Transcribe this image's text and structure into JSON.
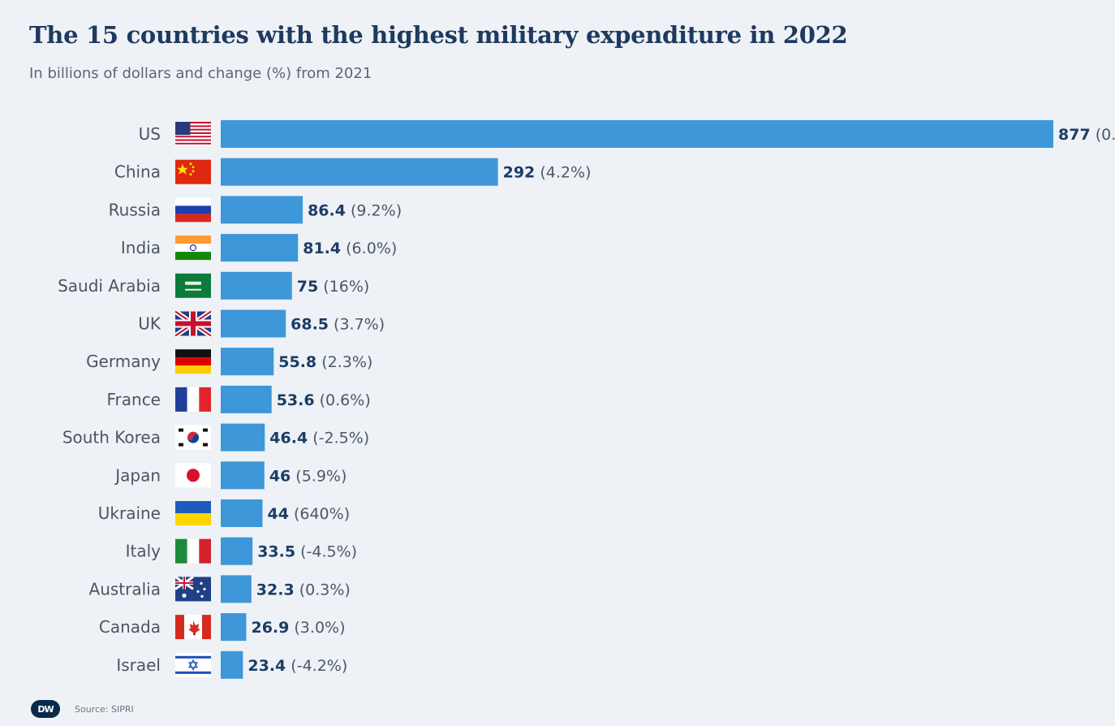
{
  "chart_data": {
    "type": "bar",
    "orientation": "horizontal",
    "title": "The 15 countries with the highest military expenditure in 2022",
    "subtitle": "In billions of dollars and change (%) from 2021",
    "categories": [
      "US",
      "China",
      "Russia",
      "India",
      "Saudi Arabia",
      "UK",
      "Germany",
      "France",
      "South Korea",
      "Japan",
      "Ukraine",
      "Italy",
      "Australia",
      "Canada",
      "Israel"
    ],
    "values": [
      877,
      292,
      86.4,
      81.4,
      75,
      68.5,
      55.8,
      53.6,
      46.4,
      46,
      44,
      33.5,
      32.3,
      26.9,
      23.4
    ],
    "value_labels": [
      "877",
      "292",
      "86.4",
      "81.4",
      "75",
      "68.5",
      "55.8",
      "53.6",
      "46.4",
      "46",
      "44",
      "33.5",
      "32.3",
      "26.9",
      "23.4"
    ],
    "change_labels": [
      "(0.",
      "(4.2%)",
      "(9.2%)",
      "(6.0%)",
      "(16%)",
      "(3.7%)",
      "(2.3%)",
      "(0.6%)",
      "(-2.5%)",
      "(5.9%)",
      "(640%)",
      "(-4.5%)",
      "(0.3%)",
      "(3.0%)",
      "(-4.2%)"
    ],
    "flags": [
      "us-flag",
      "china-flag",
      "russia-flag",
      "india-flag",
      "saudi-arabia-flag",
      "uk-flag",
      "germany-flag",
      "france-flag",
      "south-korea-flag",
      "japan-flag",
      "ukraine-flag",
      "italy-flag",
      "australia-flag",
      "canada-flag",
      "israel-flag"
    ],
    "colors": {
      "bar": "#3d97d8",
      "value_text": "#1b3d66",
      "change_text": "#4a5868",
      "label_text": "#4a5561"
    },
    "grid": false
  },
  "footer": {
    "logo_text": "DW",
    "source": "Source: SIPRI"
  }
}
